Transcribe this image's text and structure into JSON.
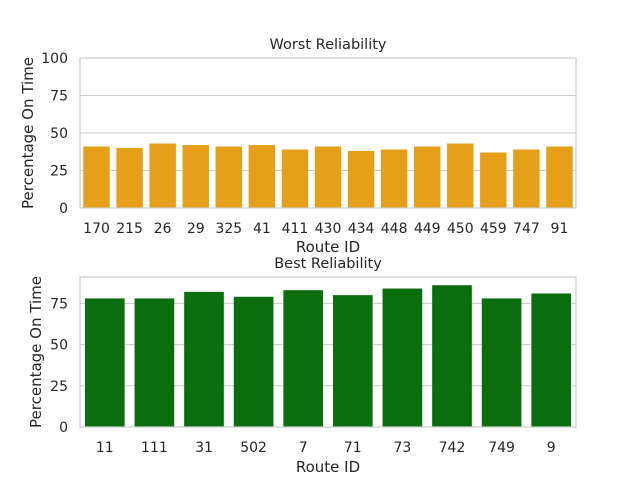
{
  "chart_data": [
    {
      "type": "bar",
      "title": "Worst Reliability",
      "xlabel": "Route ID",
      "ylabel": "Percentage On Time",
      "ylim": [
        0,
        100
      ],
      "yticks": [
        0,
        25,
        50,
        75,
        100
      ],
      "grid": "horizontal",
      "color": "#E69F19",
      "categories": [
        "170",
        "215",
        "26",
        "29",
        "325",
        "41",
        "411",
        "430",
        "434",
        "448",
        "449",
        "450",
        "459",
        "747",
        "91"
      ],
      "values": [
        41,
        40,
        43,
        42,
        41,
        42,
        39,
        41,
        38,
        39,
        41,
        43,
        37,
        39,
        41
      ]
    },
    {
      "type": "bar",
      "title": "Best Reliability",
      "xlabel": "Route ID",
      "ylabel": "Percentage On Time",
      "ylim": [
        0,
        91
      ],
      "yticks": [
        0,
        25,
        50,
        75
      ],
      "grid": "horizontal",
      "color": "#0A6E0F",
      "categories": [
        "11",
        "111",
        "31",
        "502",
        "7",
        "71",
        "73",
        "742",
        "749",
        "9"
      ],
      "values": [
        78,
        78,
        82,
        79,
        83,
        80,
        84,
        86,
        78,
        81
      ]
    }
  ]
}
